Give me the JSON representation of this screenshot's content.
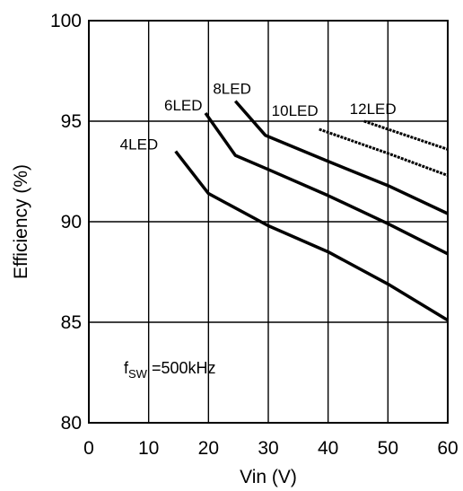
{
  "chart_data": {
    "type": "line",
    "title": "",
    "xlabel": "Vin (V)",
    "ylabel": "Efficiency (%)",
    "xlim": [
      0,
      60
    ],
    "ylim": [
      80,
      100
    ],
    "xticks": [
      0,
      10,
      20,
      30,
      40,
      50,
      60
    ],
    "yticks": [
      80,
      85,
      90,
      95,
      100
    ],
    "grid": true,
    "legend": "none",
    "line_color": "#000000",
    "annotation": {
      "main": "f",
      "sub": "SW",
      "value": " =500kHz"
    },
    "series": [
      {
        "name": "4LED",
        "x": [
          14.5,
          20,
          30,
          40,
          50,
          60
        ],
        "y": [
          93.5,
          91.4,
          89.8,
          88.5,
          86.9,
          85.1
        ]
      },
      {
        "name": "6LED",
        "x": [
          19.5,
          24.5,
          30,
          40,
          50,
          60
        ],
        "y": [
          95.4,
          93.3,
          92.6,
          91.3,
          89.9,
          88.4
        ]
      },
      {
        "name": "8LED",
        "x": [
          24.5,
          29.5,
          40,
          50,
          60
        ],
        "y": [
          96.0,
          94.3,
          93.0,
          91.8,
          90.4
        ]
      },
      {
        "name": "10LED",
        "x": [
          38.5,
          50,
          60
        ],
        "y": [
          94.6,
          93.4,
          92.3
        ]
      },
      {
        "name": "12LED",
        "x": [
          46,
          60
        ],
        "y": [
          95.0,
          93.6
        ]
      }
    ]
  }
}
